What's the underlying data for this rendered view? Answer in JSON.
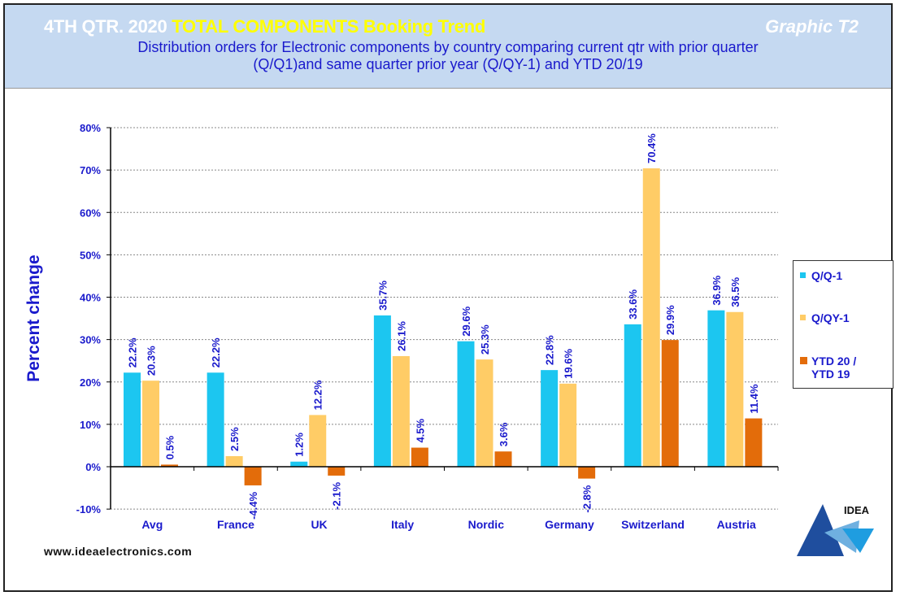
{
  "header": {
    "title_prefix": "4TH QTR. 2020 ",
    "title_highlight": "TOTAL COMPONENTS  Booking Trend",
    "graphic_label": "Graphic T2",
    "subtitle_line1": "Distribution  orders for Electronic components by country comparing  current qtr with prior quarter",
    "subtitle_line2": "(Q/Q1)and  same quarter prior year (Q/QY-1)  and YTD  20/19"
  },
  "footer": {
    "url": "www.ideaelectronics.com",
    "logo_text": "IDEA"
  },
  "chart_data": {
    "type": "bar",
    "ylabel": "Percent change",
    "ylim": [
      -10,
      80
    ],
    "yticks": [
      "-10%",
      "0%",
      "10%",
      "20%",
      "30%",
      "40%",
      "50%",
      "60%",
      "70%",
      "80%"
    ],
    "grid": true,
    "legend_position": "right",
    "categories": [
      "Avg",
      "France",
      "UK",
      "Italy",
      "Nordic",
      "Germany",
      "Switzerland",
      "Austria"
    ],
    "series": [
      {
        "name": "Q/Q-1",
        "color": "#1cc6f0",
        "values": [
          22.2,
          22.2,
          1.2,
          35.7,
          29.6,
          22.8,
          33.6,
          36.9
        ],
        "labels": [
          "22.2%",
          "22.2%",
          "1.2%",
          "35.7%",
          "29.6%",
          "22.8%",
          "33.6%",
          "36.9%"
        ]
      },
      {
        "name": "Q/QY-1",
        "color": "#ffcc66",
        "values": [
          20.3,
          2.5,
          12.2,
          26.1,
          25.3,
          19.6,
          70.4,
          36.5
        ],
        "labels": [
          "20.3%",
          "2.5%",
          "12.2%",
          "26.1%",
          "25.3%",
          "19.6%",
          "70.4%",
          "36.5%"
        ]
      },
      {
        "name": "YTD 20 / YTD 19",
        "name_line1": "YTD 20 /",
        "name_line2": "YTD 19",
        "color": "#e36c0a",
        "values": [
          0.5,
          -4.4,
          -2.1,
          4.5,
          3.6,
          -2.8,
          29.9,
          11.4
        ],
        "labels": [
          "0.5%",
          "-4.4%",
          "-2.1%",
          "4.5%",
          "3.6%",
          "-2.8%",
          "29.9%",
          "11.4%"
        ]
      }
    ]
  }
}
